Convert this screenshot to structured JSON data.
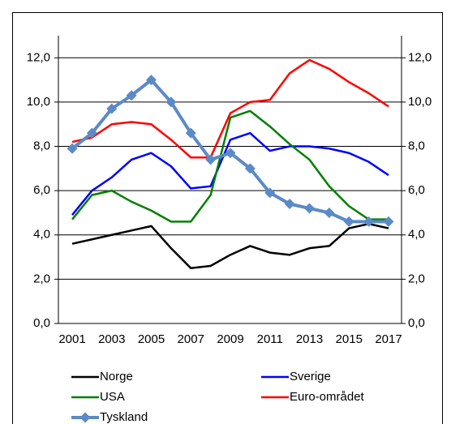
{
  "chart_data": {
    "type": "line",
    "categories": [
      "2001",
      null,
      "2003",
      null,
      "2005",
      null,
      "2007",
      null,
      "2009",
      null,
      "2011",
      null,
      "2013",
      null,
      "2015",
      null,
      "2017"
    ],
    "series": [
      {
        "name": "Norge",
        "color": "#000000",
        "values": [
          3.6,
          3.8,
          4.0,
          4.2,
          4.4,
          3.4,
          2.5,
          2.6,
          3.1,
          3.5,
          3.2,
          3.1,
          3.4,
          3.5,
          4.3,
          4.5,
          4.3
        ]
      },
      {
        "name": "Sverige",
        "color": "#0000ff",
        "values": [
          4.9,
          6.0,
          6.6,
          7.4,
          7.7,
          7.1,
          6.1,
          6.2,
          8.3,
          8.6,
          7.8,
          8.0,
          8.0,
          7.9,
          7.7,
          7.3,
          6.7
        ]
      },
      {
        "name": "USA",
        "color": "#008000",
        "values": [
          4.7,
          5.8,
          6.0,
          5.5,
          5.1,
          4.6,
          4.6,
          5.8,
          9.3,
          9.6,
          8.9,
          8.1,
          7.4,
          6.2,
          5.3,
          4.7,
          4.7
        ]
      },
      {
        "name": "Euro-området",
        "color": "#ff0000",
        "values": [
          8.2,
          8.4,
          9.0,
          9.1,
          9.0,
          8.3,
          7.5,
          7.5,
          9.5,
          10.0,
          10.1,
          11.3,
          11.9,
          11.5,
          10.9,
          10.4,
          9.8
        ]
      },
      {
        "name": "Tyskland",
        "color": "#5b8ac6",
        "marker": "diamond",
        "values": [
          7.9,
          8.6,
          9.7,
          10.3,
          11.0,
          10.0,
          8.6,
          7.4,
          7.7,
          7.0,
          5.9,
          5.4,
          5.2,
          5.0,
          4.6,
          4.6,
          4.6
        ]
      }
    ],
    "ylim": [
      0,
      13
    ],
    "yticks": [
      {
        "value": 0,
        "label": "0,0"
      },
      {
        "value": 2,
        "label": "2,0"
      },
      {
        "value": 4,
        "label": "4,0"
      },
      {
        "value": 6,
        "label": "6,0"
      },
      {
        "value": 8,
        "label": "8,0"
      },
      {
        "value": 10,
        "label": "10,0"
      },
      {
        "value": 12,
        "label": "12,0"
      }
    ],
    "y2lim": [
      0,
      13
    ],
    "y2ticks": [
      {
        "value": 0,
        "label": "0,0"
      },
      {
        "value": 2,
        "label": "2,0"
      },
      {
        "value": 4,
        "label": "4,0"
      },
      {
        "value": 6,
        "label": "6,0"
      },
      {
        "value": 8,
        "label": "8,0"
      },
      {
        "value": 10,
        "label": "10,0"
      },
      {
        "value": 12,
        "label": "12,0"
      }
    ],
    "grid": true
  }
}
